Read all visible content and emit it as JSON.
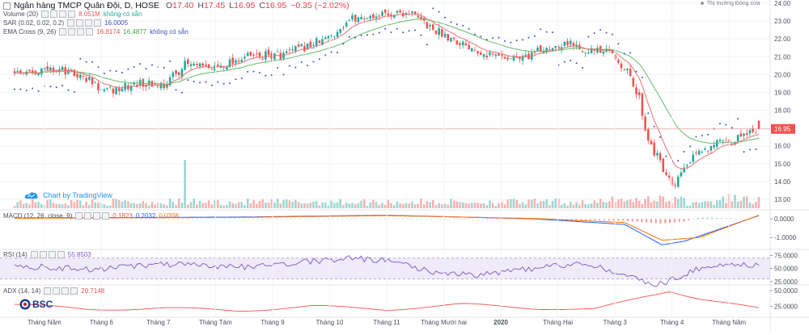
{
  "header": {
    "symbol": "Ngân hàng TMCP Quân Đội, D, HOSE",
    "ohlc": [
      {
        "label": "O",
        "value": "17.40"
      },
      {
        "label": "H",
        "value": "17.45"
      },
      {
        "label": "L",
        "value": "16.95"
      },
      {
        "label": "C",
        "value": "16.95"
      }
    ],
    "change": "−0.35 (−2.02%)",
    "market_status": "Thị trường Đóng cửa"
  },
  "indicators": {
    "volume": {
      "name": "Volume (20)",
      "values": [
        "8.051M",
        "không có sẵn"
      ]
    },
    "sar": {
      "name": "SAR (0.02, 0.02, 0.2)",
      "values": [
        "16.0005"
      ]
    },
    "ema": {
      "name": "EMA Cross (9, 26)",
      "values": [
        "16.8174",
        "16.4877",
        "không có sẵn"
      ]
    },
    "macd": {
      "name": "MACD (12, 26, close, 9)",
      "values": [
        "0.1823",
        "0.2032",
        "0.0208"
      ]
    },
    "rsi": {
      "name": "RSI (14)",
      "values": [
        "55.8503"
      ]
    },
    "adx": {
      "name": "ADX (14, 14)",
      "values": [
        "20.7148"
      ]
    }
  },
  "colors": {
    "up": "#26a69a",
    "down": "#ef5350",
    "sar": "#3f51b5",
    "ema_fast": "#e57373",
    "ema_slow": "#66bb6a",
    "macd": "#2962ff",
    "signal": "#ff6d00",
    "rsi": "#7e57c2",
    "adx": "#ef5350",
    "price_tag": "#ef5350",
    "brand": "#2196f3"
  },
  "branding": {
    "tradingview": "Chart by TradingView",
    "broker": "BSC"
  },
  "chart_data": [
    {
      "type": "candlestick",
      "panel": "price",
      "ylim": [
        12.5,
        24.0
      ],
      "y_ticks": [
        "24.00",
        "23.00",
        "22.00",
        "21.00",
        "20.00",
        "19.00",
        "18.00",
        "17.00",
        "16.00",
        "15.00",
        "14.00",
        "13.00"
      ],
      "last_price_label": "16.95",
      "last_price": 16.95,
      "x_ticks": [
        "Tháng Năm",
        "Tháng 6",
        "Tháng 7",
        "Tháng Tám",
        "Tháng 9",
        "Tháng 10",
        "Tháng 11",
        "Tháng Mười hai",
        "2020",
        "Tháng Hai",
        "Tháng 3",
        "Tháng 4",
        "Tháng Năm"
      ],
      "close_path": [
        [
          0,
          20.2
        ],
        [
          0.06,
          20.3
        ],
        [
          0.1,
          19.7
        ],
        [
          0.12,
          19.0
        ],
        [
          0.17,
          19.5
        ],
        [
          0.2,
          19.4
        ],
        [
          0.23,
          20.6
        ],
        [
          0.26,
          20.3
        ],
        [
          0.31,
          21.0
        ],
        [
          0.36,
          21.1
        ],
        [
          0.42,
          22.0
        ],
        [
          0.45,
          23.1
        ],
        [
          0.5,
          23.4
        ],
        [
          0.53,
          23.5
        ],
        [
          0.56,
          22.6
        ],
        [
          0.6,
          21.8
        ],
        [
          0.64,
          21.1
        ],
        [
          0.68,
          20.9
        ],
        [
          0.71,
          21.4
        ],
        [
          0.74,
          21.8
        ],
        [
          0.78,
          21.3
        ],
        [
          0.8,
          21.2
        ],
        [
          0.82,
          20.4
        ],
        [
          0.84,
          18.6
        ],
        [
          0.85,
          16.5
        ],
        [
          0.87,
          14.8
        ],
        [
          0.885,
          13.5
        ],
        [
          0.9,
          14.8
        ],
        [
          0.92,
          15.6
        ],
        [
          0.94,
          16.2
        ],
        [
          0.96,
          16.0
        ],
        [
          0.98,
          16.8
        ],
        [
          1.0,
          16.95
        ]
      ],
      "series": [
        {
          "name": "EMA Cross (9, 26)"
        },
        {
          "name": "SAR (0.02, 0.02, 0.2)"
        }
      ]
    },
    {
      "type": "bar",
      "panel": "volume",
      "spike_position": 0.23,
      "note": "daily volume bars, colored by candle direction"
    },
    {
      "type": "line",
      "panel": "macd",
      "ylim": [
        -1.6,
        0.4
      ],
      "y_ticks": [
        "0.0000",
        "-1.0000"
      ],
      "macd_path": [
        [
          0,
          0.05
        ],
        [
          0.3,
          0.1
        ],
        [
          0.5,
          0.2
        ],
        [
          0.7,
          0.0
        ],
        [
          0.82,
          -0.3
        ],
        [
          0.87,
          -1.4
        ],
        [
          0.9,
          -1.2
        ],
        [
          1.0,
          0.18
        ]
      ],
      "signal_path": [
        [
          0,
          0.04
        ],
        [
          0.3,
          0.08
        ],
        [
          0.5,
          0.18
        ],
        [
          0.7,
          0.02
        ],
        [
          0.82,
          -0.2
        ],
        [
          0.87,
          -1.15
        ],
        [
          0.92,
          -1.0
        ],
        [
          1.0,
          0.2
        ]
      ]
    },
    {
      "type": "line",
      "panel": "rsi",
      "ylim": [
        20,
        85
      ],
      "y_ticks": [
        "75.0000",
        "50.0000",
        "25.0000"
      ],
      "bands": [
        30,
        70
      ],
      "path": [
        [
          0,
          55
        ],
        [
          0.1,
          48
        ],
        [
          0.2,
          58
        ],
        [
          0.3,
          52
        ],
        [
          0.38,
          62
        ],
        [
          0.45,
          70
        ],
        [
          0.5,
          66
        ],
        [
          0.56,
          44
        ],
        [
          0.62,
          38
        ],
        [
          0.7,
          50
        ],
        [
          0.76,
          60
        ],
        [
          0.8,
          48
        ],
        [
          0.84,
          26
        ],
        [
          0.87,
          20
        ],
        [
          0.9,
          40
        ],
        [
          0.94,
          58
        ],
        [
          1.0,
          55.8
        ]
      ]
    },
    {
      "type": "line",
      "panel": "adx",
      "ylim": [
        10,
        58
      ],
      "y_ticks": [
        "50.0000",
        "25.0000"
      ],
      "path": [
        [
          0,
          28
        ],
        [
          0.1,
          20
        ],
        [
          0.2,
          22
        ],
        [
          0.3,
          18
        ],
        [
          0.4,
          25
        ],
        [
          0.5,
          20
        ],
        [
          0.6,
          28
        ],
        [
          0.7,
          22
        ],
        [
          0.78,
          20
        ],
        [
          0.84,
          38
        ],
        [
          0.88,
          50
        ],
        [
          0.92,
          38
        ],
        [
          1.0,
          20.7
        ]
      ]
    }
  ]
}
